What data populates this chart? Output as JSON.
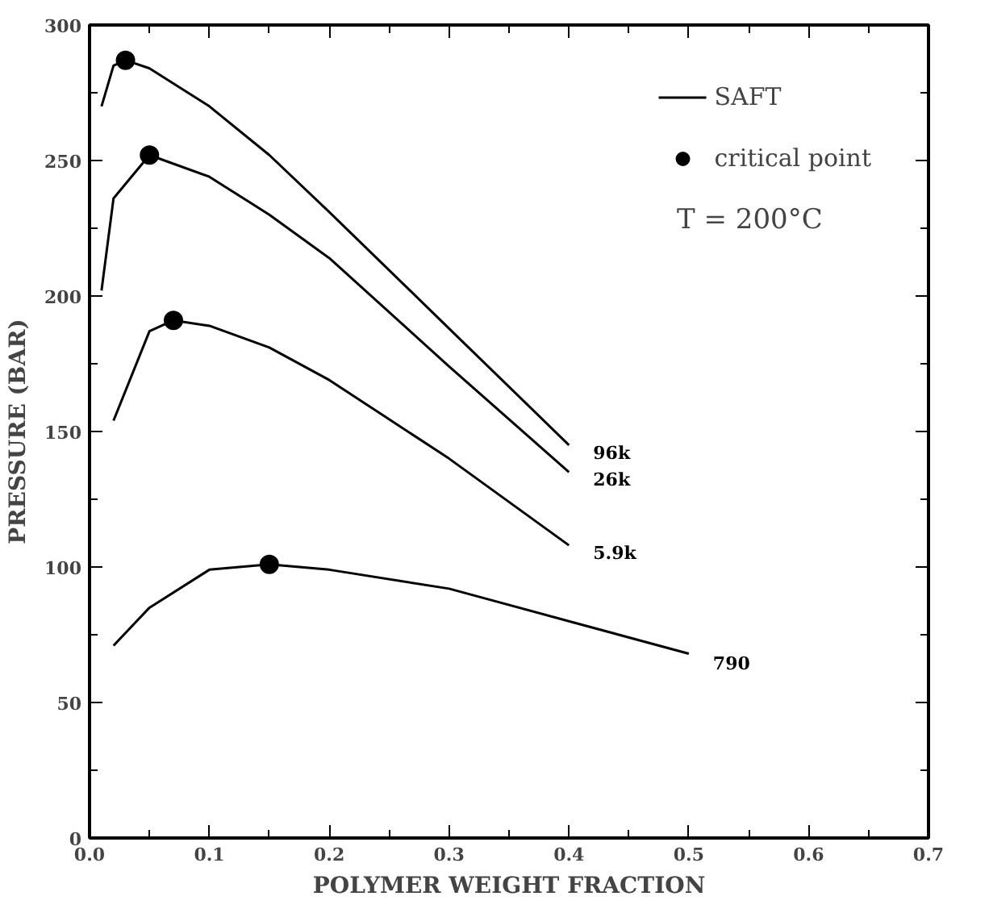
{
  "chart_data": {
    "type": "line",
    "xlabel": "POLYMER WEIGHT FRACTION",
    "ylabel": "PRESSURE (BAR)",
    "xlim": [
      0,
      0.7
    ],
    "ylim": [
      0,
      300
    ],
    "xticks": [
      {
        "value": 0,
        "label": "0.0"
      },
      0.1,
      0.2,
      0.3,
      0.4,
      0.5,
      0.6,
      0.7,
      {
        "value": 0.05,
        "label": null
      },
      {
        "value": 0.15,
        "label": null
      },
      {
        "value": 0.25,
        "label": null
      },
      {
        "value": 0.35,
        "label": null
      },
      {
        "value": 0.45,
        "label": null
      },
      {
        "value": 0.55,
        "label": null
      },
      {
        "value": 0.65,
        "label": null
      }
    ],
    "yticks": [
      0,
      50,
      100,
      150,
      200,
      250,
      300,
      {
        "value": 25,
        "label": null
      },
      {
        "value": 75,
        "label": null
      },
      {
        "value": 125,
        "label": null
      },
      {
        "value": 175,
        "label": null
      },
      {
        "value": 225,
        "label": null
      },
      {
        "value": 275,
        "label": null
      }
    ],
    "legend": "top right",
    "marker": "none",
    "line_style": "solid",
    "grid": false,
    "series": [
      {
        "name": "SAFT",
        "color": "#000000",
        "x": [
          0.01,
          0.02,
          0.03,
          0.05,
          0.1,
          0.15,
          0.2,
          0.3,
          0.4
        ],
        "values": [
          270,
          285,
          287,
          284,
          270,
          252,
          231,
          188,
          145
        ]
      },
      {
        "color": "#000000",
        "x": [
          0.01,
          0.02,
          0.05,
          0.1,
          0.15,
          0.2,
          0.3,
          0.4
        ],
        "values": [
          202,
          236,
          252,
          244,
          230,
          214,
          174,
          135
        ]
      },
      {
        "color": "#000000",
        "x": [
          0.02,
          0.05,
          0.07,
          0.1,
          0.15,
          0.2,
          0.3,
          0.4
        ],
        "values": [
          154,
          187,
          191,
          189,
          181,
          169,
          140,
          108
        ]
      },
      {
        "color": "#000000",
        "x": [
          0.02,
          0.05,
          0.1,
          0.15,
          0.2,
          0.3,
          0.4,
          0.5
        ],
        "values": [
          71,
          85,
          99,
          101,
          99,
          92,
          80,
          68
        ]
      },
      {
        "name": "critical point",
        "type": "scatter",
        "marker": "circle",
        "color": "#000000",
        "x": [
          0.03,
          0.05,
          0.07,
          0.15
        ],
        "values": [
          287,
          252,
          191,
          101
        ]
      }
    ],
    "annotations": [
      "96k",
      "26k",
      "5.9k",
      "790",
      "T = 200°C"
    ]
  }
}
